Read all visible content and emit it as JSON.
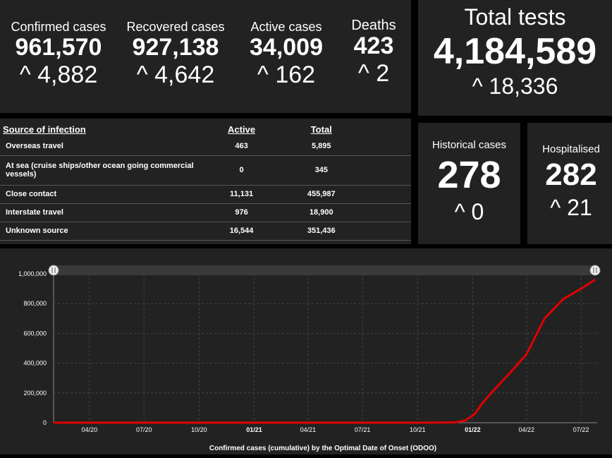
{
  "stats": {
    "confirmed": {
      "label": "Confirmed cases",
      "value": "961,570",
      "delta": "^ 4,882"
    },
    "recovered": {
      "label": "Recovered cases",
      "value": "927,138",
      "delta": "^ 4,642"
    },
    "active": {
      "label": "Active cases",
      "value": "34,009",
      "delta": "^ 162"
    },
    "deaths": {
      "label": "Deaths",
      "value": "423",
      "delta": "^ 2"
    }
  },
  "tests": {
    "label": "Total tests",
    "value": "4,184,589",
    "delta": "^ 18,336"
  },
  "historical": {
    "label": "Historical cases",
    "value": "278",
    "delta": "^ 0"
  },
  "hospitalised": {
    "label": "Hospitalised",
    "value": "282",
    "delta": "^ 21"
  },
  "source_table": {
    "headers": [
      "Source of infection",
      "Active",
      "Total"
    ],
    "rows": [
      {
        "source": "Overseas travel",
        "active": "463",
        "total": "5,895"
      },
      {
        "source": "At sea (cruise ships/other ocean going commercial vessels)",
        "active": "0",
        "total": "345"
      },
      {
        "source": "Close contact",
        "active": "11,131",
        "total": "455,987"
      },
      {
        "source": "Interstate travel",
        "active": "976",
        "total": "18,900"
      },
      {
        "source": "Unknown source",
        "active": "16,544",
        "total": "351,436"
      }
    ]
  },
  "chart_data": {
    "type": "line",
    "title": "",
    "xlabel": "Confirmed cases (cumulative) by the Optimal Date of Onset (ODOO)",
    "ylabel": "",
    "x_tick_labels": [
      "04/20",
      "07/20",
      "10/20",
      "01/21",
      "04/21",
      "07/21",
      "10/21",
      "01/22",
      "04/22",
      "07/22"
    ],
    "y_tick_labels": [
      "0",
      "200,000",
      "400,000",
      "600,000",
      "800,000",
      "1,000,000"
    ],
    "ylim": [
      0,
      1000000
    ],
    "grid": true,
    "series": [
      {
        "color": "#e00000",
        "x": [
          "2020-02-01",
          "2020-04-01",
          "2020-07-01",
          "2020-10-01",
          "2021-01-01",
          "2021-04-01",
          "2021-07-01",
          "2021-10-01",
          "2021-12-01",
          "2021-12-20",
          "2022-01-05",
          "2022-01-15",
          "2022-02-01",
          "2022-03-01",
          "2022-04-01",
          "2022-05-01",
          "2022-06-01",
          "2022-07-01",
          "2022-07-25"
        ],
        "values": [
          0,
          0,
          0,
          0,
          0,
          0,
          0,
          0,
          2000,
          15000,
          60000,
          120000,
          200000,
          320000,
          460000,
          700000,
          830000,
          900000,
          961570
        ]
      }
    ]
  }
}
